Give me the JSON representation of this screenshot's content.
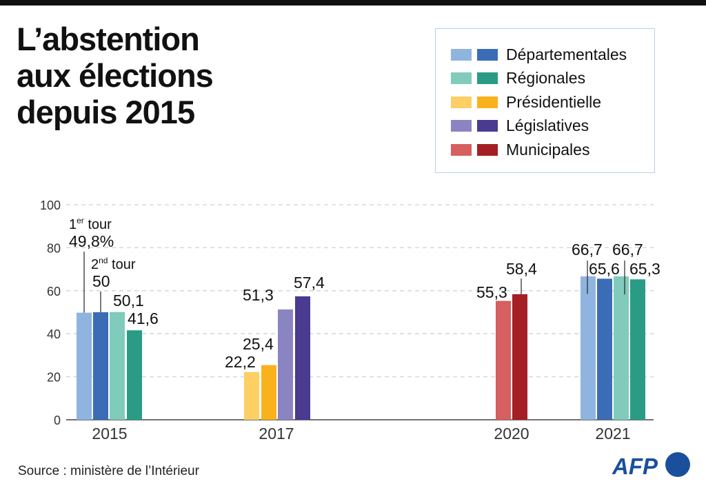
{
  "title_lines": [
    "L’abstention",
    "aux élections",
    "depuis 2015"
  ],
  "legend": [
    {
      "label": "Départementales",
      "colors": [
        "#8fb4e0",
        "#3a6db5"
      ]
    },
    {
      "label": "Régionales",
      "colors": [
        "#80cbbc",
        "#2a9c86"
      ]
    },
    {
      "label": "Présidentielle",
      "colors": [
        "#fdcf64",
        "#f9b21b"
      ]
    },
    {
      "label": "Législatives",
      "colors": [
        "#8a84c2",
        "#4a3a90"
      ]
    },
    {
      "label": "Municipales",
      "colors": [
        "#d65f5f",
        "#a31f24"
      ]
    }
  ],
  "source": "Source : ministère de l’Intérieur",
  "logo": "AFP",
  "chart_data": {
    "type": "bar",
    "ylim": [
      0,
      100
    ],
    "yticks": [
      "0",
      "20",
      "40",
      "60",
      "80",
      "100"
    ],
    "grid": true,
    "categories": [
      "2015",
      "2017",
      "2020",
      "2021"
    ],
    "annotations": {
      "first_round": [
        "1",
        "er",
        " tour"
      ],
      "second_round": [
        "2",
        "nd",
        " tour"
      ]
    },
    "bars": [
      {
        "year": "2015",
        "election": "Départementales",
        "round": 1,
        "value": 49.8,
        "label": "49,8%"
      },
      {
        "year": "2015",
        "election": "Départementales",
        "round": 2,
        "value": 50,
        "label": "50"
      },
      {
        "year": "2015",
        "election": "Régionales",
        "round": 1,
        "value": 50.1,
        "label": "50,1"
      },
      {
        "year": "2015",
        "election": "Régionales",
        "round": 2,
        "value": 41.6,
        "label": "41,6"
      },
      {
        "year": "2017",
        "election": "Présidentielle",
        "round": 1,
        "value": 22.2,
        "label": "22,2"
      },
      {
        "year": "2017",
        "election": "Présidentielle",
        "round": 2,
        "value": 25.4,
        "label": "25,4"
      },
      {
        "year": "2017",
        "election": "Législatives",
        "round": 1,
        "value": 51.3,
        "label": "51,3"
      },
      {
        "year": "2017",
        "election": "Législatives",
        "round": 2,
        "value": 57.4,
        "label": "57,4"
      },
      {
        "year": "2020",
        "election": "Municipales",
        "round": 1,
        "value": 55.3,
        "label": "55,3"
      },
      {
        "year": "2020",
        "election": "Municipales",
        "round": 2,
        "value": 58.4,
        "label": "58,4"
      },
      {
        "year": "2021",
        "election": "Départementales",
        "round": 1,
        "value": 66.7,
        "label": "66,7"
      },
      {
        "year": "2021",
        "election": "Départementales",
        "round": 2,
        "value": 65.6,
        "label": "65,6"
      },
      {
        "year": "2021",
        "election": "Régionales",
        "round": 1,
        "value": 66.7,
        "label": "66,7"
      },
      {
        "year": "2021",
        "election": "Régionales",
        "round": 2,
        "value": 65.3,
        "label": "65,3"
      }
    ]
  }
}
